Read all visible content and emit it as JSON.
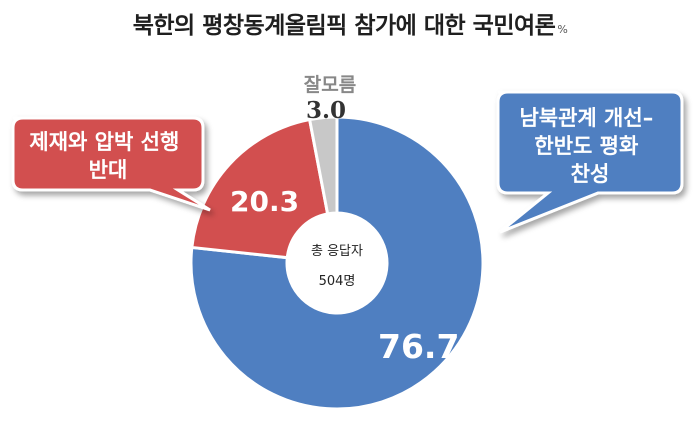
{
  "chart_data": {
    "type": "pie",
    "title": "북한의 평창동계올림픽 참가에 대한 국민여론",
    "unit": "%",
    "center_label": "총 응답자",
    "center_value": "504명",
    "slices": [
      {
        "label": "남북관계 개선–\n한반도 평화\n찬성",
        "value": 76.7,
        "value_text": "76.7",
        "color": "#4F7FC1"
      },
      {
        "label": "제재와 압박 선행\n반대",
        "value": 20.3,
        "value_text": "20.3",
        "color": "#D24F4F"
      },
      {
        "label": "잘모름",
        "value": 3.0,
        "value_text": "3.0",
        "color": "#C8C8C8"
      }
    ]
  }
}
